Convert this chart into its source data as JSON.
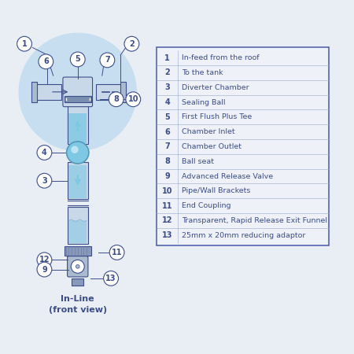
{
  "bg_color": "#e8eef4",
  "title_bottom": "In-Line\n(front view)",
  "legend_items": [
    [
      1,
      "In-feed from the roof"
    ],
    [
      2,
      "To the tank"
    ],
    [
      3,
      "Diverter Chamber"
    ],
    [
      4,
      "Sealing Ball"
    ],
    [
      5,
      "First Flush Plus Tee"
    ],
    [
      6,
      "Chamber Inlet"
    ],
    [
      7,
      "Chamber Outlet"
    ],
    [
      8,
      "Ball seat"
    ],
    [
      9,
      "Advanced Release Valve"
    ],
    [
      10,
      "Pipe/Wall Brackets"
    ],
    [
      11,
      "End Coupling"
    ],
    [
      12,
      "Transparent, Rapid Release Exit Funnel"
    ],
    [
      13,
      "25mm x 20mm reducing adaptor"
    ]
  ],
  "text_color": "#3d4d8a",
  "line_color": "#3d4d8a",
  "water_color": "#7ec8e3",
  "pipe_color": "#c8d8e8",
  "circle_bg": "#ffffff",
  "table_bg": "#eef2f8",
  "table_border": "#5566aa"
}
